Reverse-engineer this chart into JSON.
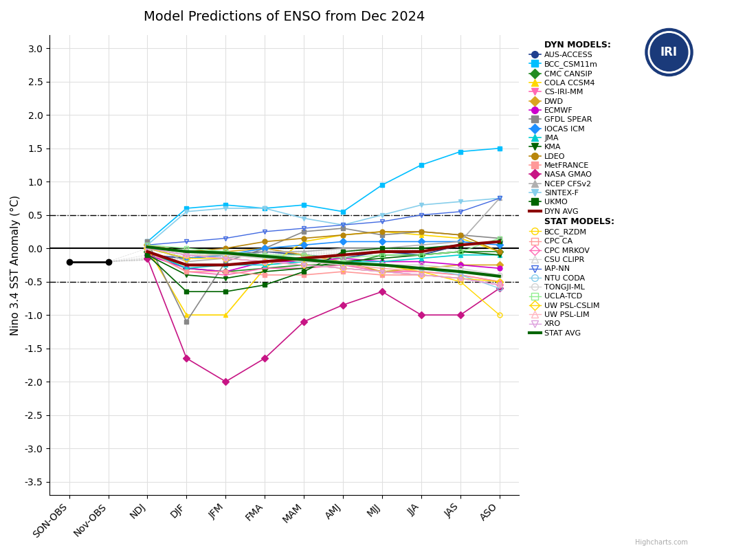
{
  "title": "Model Predictions of ENSO from Dec 2024",
  "ylabel": "Nino 3.4 SST Anomaly (°C)",
  "x_labels": [
    "SON-OBS",
    "Nov-OBS",
    "NDJ",
    "DJF",
    "JFM",
    "FMA",
    "MAM",
    "AMJ",
    "MJJ",
    "JJA",
    "JAS",
    "ASO"
  ],
  "ylim": [
    -3.7,
    3.2
  ],
  "yticks": [
    -3.5,
    -3.0,
    -2.5,
    -2.0,
    -1.5,
    -1.0,
    -0.5,
    0.0,
    0.5,
    1.0,
    1.5,
    2.0,
    2.5,
    3.0
  ],
  "obs_value": -0.2,
  "dyn_models": {
    "AUS-ACCESS": {
      "color": "#1f3f8f",
      "marker": "o",
      "data": [
        null,
        null,
        -0.1,
        -0.15,
        -0.1,
        -0.05,
        -0.1,
        -0.15,
        -0.05,
        -0.1,
        0.05,
        0.1
      ]
    },
    "BCC_CSM11m": {
      "color": "#00bfff",
      "marker": "s",
      "data": [
        null,
        null,
        0.1,
        0.6,
        0.65,
        0.6,
        0.65,
        0.55,
        0.95,
        1.25,
        1.45,
        1.5
      ]
    },
    "CMC CANSIP": {
      "color": "#228b22",
      "marker": "D",
      "data": [
        null,
        null,
        -0.05,
        -0.3,
        -0.35,
        -0.3,
        -0.25,
        -0.25,
        -0.1,
        -0.1,
        -0.05,
        -0.05
      ]
    },
    "COLA CCSM4": {
      "color": "#ffd700",
      "marker": "^",
      "data": [
        null,
        null,
        0.0,
        -1.0,
        -1.0,
        -0.3,
        0.1,
        0.2,
        0.25,
        0.2,
        0.15,
        -0.05
      ]
    },
    "CS-IRI-MM": {
      "color": "#ff69b4",
      "marker": "v",
      "data": [
        null,
        null,
        -0.05,
        -0.35,
        -0.4,
        -0.3,
        -0.3,
        -0.25,
        -0.35,
        -0.35,
        -0.4,
        -0.5
      ]
    },
    "DWD": {
      "color": "#daa520",
      "marker": "D",
      "data": [
        null,
        null,
        0.05,
        -0.05,
        -0.05,
        0.0,
        -0.1,
        -0.2,
        -0.35,
        -0.3,
        -0.25,
        -0.25
      ]
    },
    "ECMWF": {
      "color": "#cc00cc",
      "marker": "o",
      "data": [
        null,
        null,
        -0.1,
        -0.3,
        -0.35,
        -0.2,
        -0.2,
        -0.15,
        -0.2,
        -0.2,
        -0.25,
        -0.3
      ]
    },
    "GFDL SPEAR": {
      "color": "#888888",
      "marker": "s",
      "data": [
        null,
        null,
        0.1,
        -1.1,
        -0.2,
        0.0,
        0.25,
        0.3,
        0.2,
        0.25,
        0.2,
        0.15
      ]
    },
    "IOCAS ICM": {
      "color": "#1e90ff",
      "marker": "D",
      "data": [
        null,
        null,
        0.0,
        -0.15,
        -0.1,
        0.0,
        0.05,
        0.1,
        0.1,
        0.1,
        0.1,
        0.05
      ]
    },
    "JMA": {
      "color": "#00ced1",
      "marker": "^",
      "data": [
        null,
        null,
        -0.05,
        -0.3,
        -0.25,
        -0.25,
        -0.2,
        -0.2,
        -0.2,
        -0.15,
        -0.1,
        -0.1
      ]
    },
    "KMA": {
      "color": "#006400",
      "marker": "v",
      "data": [
        null,
        null,
        -0.1,
        -0.4,
        -0.45,
        -0.35,
        -0.3,
        -0.2,
        -0.15,
        -0.1,
        -0.05,
        -0.1
      ]
    },
    "LDEO": {
      "color": "#b8860b",
      "marker": "o",
      "data": [
        null,
        null,
        0.05,
        -0.05,
        0.0,
        0.1,
        0.15,
        0.2,
        0.25,
        0.25,
        0.2,
        -0.05
      ]
    },
    "MetFRANCE": {
      "color": "#ff9999",
      "marker": "s",
      "data": [
        null,
        null,
        -0.05,
        -0.35,
        -0.35,
        -0.4,
        -0.4,
        -0.35,
        -0.4,
        -0.4,
        -0.45,
        -0.55
      ]
    },
    "NASA GMAO": {
      "color": "#c71585",
      "marker": "D",
      "data": [
        null,
        null,
        -0.15,
        -1.65,
        -2.0,
        -1.65,
        -1.1,
        -0.85,
        -0.65,
        -1.0,
        -1.0,
        -0.6
      ]
    },
    "NCEP CFSv2": {
      "color": "#b0b0b0",
      "marker": "^",
      "data": [
        null,
        null,
        0.05,
        -0.2,
        -0.15,
        -0.05,
        -0.05,
        0.0,
        0.0,
        0.05,
        0.1,
        0.75
      ]
    },
    "SINTEX-F": {
      "color": "#87ceeb",
      "marker": "v",
      "data": [
        null,
        null,
        0.05,
        0.55,
        0.6,
        0.6,
        0.45,
        0.35,
        0.5,
        0.65,
        0.7,
        0.75
      ]
    },
    "UKMO": {
      "color": "#006400",
      "marker": "s",
      "data": [
        null,
        null,
        -0.1,
        -0.65,
        -0.65,
        -0.55,
        -0.35,
        -0.05,
        -0.0,
        0.0,
        0.05,
        0.1
      ]
    },
    "DYN AVG": {
      "color": "#8b0000",
      "marker": null,
      "linewidth": 3.0,
      "data": [
        null,
        null,
        -0.05,
        -0.25,
        -0.25,
        -0.2,
        -0.15,
        -0.1,
        -0.05,
        -0.05,
        0.05,
        0.1
      ]
    }
  },
  "stat_models": {
    "BCC_RZDM": {
      "color": "#ffd700",
      "marker": "o",
      "fillstyle": "none",
      "data": [
        null,
        null,
        0.0,
        -0.1,
        -0.1,
        -0.1,
        -0.15,
        -0.2,
        -0.25,
        -0.35,
        -0.5,
        -1.0
      ]
    },
    "CPC CA": {
      "color": "#ff9999",
      "marker": "s",
      "fillstyle": "none",
      "data": [
        null,
        null,
        0.05,
        -0.05,
        -0.1,
        -0.15,
        -0.2,
        -0.25,
        -0.3,
        -0.35,
        -0.4,
        -0.5
      ]
    },
    "CPC MRKOV": {
      "color": "#ff69b4",
      "marker": "D",
      "fillstyle": "none",
      "data": [
        null,
        null,
        0.0,
        -0.1,
        -0.15,
        -0.2,
        -0.25,
        -0.3,
        -0.35,
        -0.4,
        -0.45,
        -0.55
      ]
    },
    "CSU CLIPR": {
      "color": "#d3d3d3",
      "marker": "^",
      "fillstyle": "none",
      "data": [
        null,
        null,
        0.0,
        -0.1,
        -0.1,
        -0.15,
        -0.2,
        -0.25,
        -0.25,
        -0.3,
        -0.35,
        -0.4
      ]
    },
    "IAP-NN": {
      "color": "#4169e1",
      "marker": "v",
      "fillstyle": "none",
      "data": [
        null,
        null,
        0.05,
        0.1,
        0.15,
        0.25,
        0.3,
        0.35,
        0.4,
        0.5,
        0.55,
        0.75
      ]
    },
    "NTU CODA": {
      "color": "#87ceeb",
      "marker": "o",
      "fillstyle": "none",
      "data": [
        null,
        null,
        0.0,
        -0.05,
        -0.05,
        -0.1,
        -0.15,
        -0.2,
        -0.25,
        -0.3,
        -0.4,
        -0.6
      ]
    },
    "TONGJI-ML": {
      "color": "#d3d3d3",
      "marker": "o",
      "fillstyle": "none",
      "data": [
        null,
        null,
        0.0,
        -0.05,
        -0.1,
        -0.15,
        -0.2,
        -0.2,
        -0.25,
        -0.25,
        -0.3,
        -0.4
      ]
    },
    "UCLA-TCD": {
      "color": "#90ee90",
      "marker": "s",
      "fillstyle": "none",
      "data": [
        null,
        null,
        0.05,
        0.0,
        -0.05,
        -0.1,
        -0.1,
        -0.15,
        -0.1,
        -0.1,
        -0.05,
        0.15
      ]
    },
    "UW PSL-CSLIM": {
      "color": "#ffd700",
      "marker": "D",
      "fillstyle": "none",
      "data": [
        null,
        null,
        0.0,
        -0.15,
        -0.15,
        -0.2,
        -0.25,
        -0.3,
        -0.35,
        -0.4,
        -0.45,
        -0.5
      ]
    },
    "UW PSL-LIM": {
      "color": "#ffb6c1",
      "marker": "^",
      "fillstyle": "none",
      "data": [
        null,
        null,
        0.0,
        -0.1,
        -0.15,
        -0.2,
        -0.25,
        -0.3,
        -0.35,
        -0.4,
        -0.45,
        -0.55
      ]
    },
    "XRO": {
      "color": "#dda0dd",
      "marker": "v",
      "fillstyle": "none",
      "data": [
        null,
        null,
        0.0,
        -0.1,
        -0.15,
        -0.2,
        -0.25,
        -0.3,
        -0.35,
        -0.4,
        -0.45,
        -0.55
      ]
    },
    "STAT AVG": {
      "color": "#006400",
      "marker": null,
      "linewidth": 3.0,
      "data": [
        null,
        null,
        0.02,
        -0.05,
        -0.07,
        -0.12,
        -0.17,
        -0.22,
        -0.25,
        -0.3,
        -0.35,
        -0.42
      ]
    }
  },
  "background_color": "#ffffff",
  "grid_color": "#e0e0e0",
  "forecast_fan_color": "#c8c8c8"
}
